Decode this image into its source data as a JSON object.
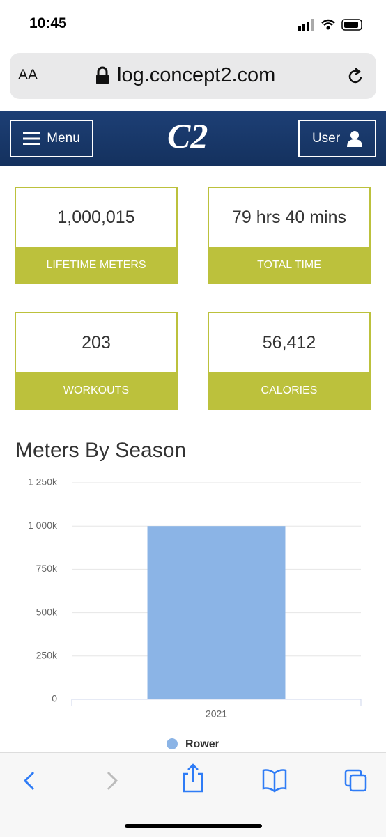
{
  "status_bar": {
    "time": "10:45"
  },
  "address_bar": {
    "text_size": "AA",
    "url": "log.concept2.com"
  },
  "nav": {
    "menu": "Menu",
    "logo": "C2",
    "user": "User"
  },
  "stats": [
    {
      "value": "1,000,015",
      "label": "LIFETIME METERS"
    },
    {
      "value": "79 hrs 40 mins",
      "label": "TOTAL TIME"
    },
    {
      "value": "203",
      "label": "WORKOUTS"
    },
    {
      "value": "56,412",
      "label": "CALORIES"
    }
  ],
  "chart_data": {
    "type": "bar",
    "title": "Meters By Season",
    "categories": [
      "2021"
    ],
    "series": [
      {
        "name": "Rower",
        "color": "#8bb4e6",
        "values": [
          1000015
        ]
      }
    ],
    "ylim": [
      0,
      1250000
    ],
    "yticks": [
      0,
      {
        "value": 250000,
        "label": "250k"
      },
      {
        "value": 500000,
        "label": "500k"
      },
      {
        "value": 750000,
        "label": "750k"
      },
      {
        "value": 1000000,
        "label": "1 000k"
      },
      {
        "value": 1250000,
        "label": "1 250k"
      }
    ],
    "grid": true
  }
}
